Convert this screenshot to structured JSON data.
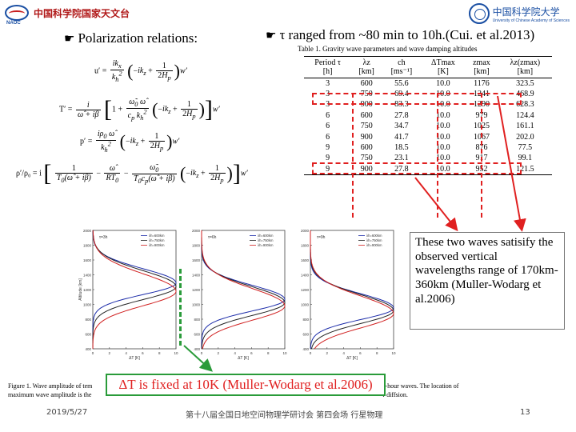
{
  "header": {
    "left_logo_text": "中国科学院国家天文台",
    "left_logo_abbr": "NAOC",
    "right_logo_text": "中国科学院大学",
    "right_logo_subtext": "University of Chinese Academy of Sciences"
  },
  "heading_left": "Polarization relations:",
  "heading_right": "τ ranged from ~80 min to 10h.(Cui. et al.2013)",
  "table": {
    "title": "Table 1.  Gravity wave parameters and wave damping altitudes",
    "columns": [
      "Period τ",
      "λz",
      "ch",
      "ΔTmax",
      "zmax",
      "λz(zmax)"
    ],
    "units": [
      "[h]",
      "[km]",
      "[ms⁻¹]",
      "[K]",
      "[km]",
      "[km]"
    ],
    "rows": [
      [
        "3",
        "600",
        "55.6",
        "10.0",
        "1176",
        "323.5"
      ],
      [
        "3",
        "750",
        "69.4",
        "10.0",
        "1241",
        "468.9"
      ],
      [
        "3",
        "900",
        "83.3",
        "10.0",
        "1290",
        "628.3"
      ],
      [
        "6",
        "600",
        "27.8",
        "10.0",
        "979",
        "124.4"
      ],
      [
        "6",
        "750",
        "34.7",
        "10.0",
        "1025",
        "161.1"
      ],
      [
        "6",
        "900",
        "41.7",
        "10.0",
        "1067",
        "202.0"
      ],
      [
        "9",
        "600",
        "18.5",
        "10.0",
        "876",
        "77.5"
      ],
      [
        "9",
        "750",
        "23.1",
        "10.0",
        "917",
        "99.1"
      ],
      [
        "9",
        "900",
        "27.8",
        "10.0",
        "952",
        "121.5"
      ]
    ]
  },
  "note": "These two waves satisify the observed vertical wavelengths range of 170km-360km (Muller-Wodarg et al.2006)",
  "plots": [
    {
      "title": "τ=3h",
      "xlabel": "ΔT [K]",
      "ylabel": "Altitude [km]",
      "legend": [
        "λh=600km",
        "λh=750km",
        "λh=900km"
      ],
      "yticks": [
        "400",
        "600",
        "800",
        "1000",
        "1200",
        "1400",
        "1600",
        "1800",
        "2000"
      ],
      "xticks": [
        "0",
        "2",
        "4",
        "6",
        "8",
        "10"
      ]
    },
    {
      "title": "τ=6h",
      "xlabel": "ΔT [K]",
      "ylabel": "",
      "legend": [
        "λh=600km",
        "λh=750km",
        "λh=900km"
      ],
      "yticks": [
        "400",
        "600",
        "800",
        "1000",
        "1200",
        "1400",
        "1600",
        "1800",
        "2000"
      ],
      "xticks": [
        "0",
        "2",
        "4",
        "6",
        "8",
        "10"
      ]
    },
    {
      "title": "τ=9h",
      "xlabel": "ΔT [K]",
      "ylabel": "",
      "legend": [
        "λh=600km",
        "λh=750km",
        "λh=900km"
      ],
      "yticks": [
        "400",
        "600",
        "800",
        "1000",
        "1200",
        "1400",
        "1600",
        "1800",
        "2000"
      ],
      "xticks": [
        "0",
        "2",
        "4",
        "6",
        "8",
        "10"
      ]
    }
  ],
  "series_colors": [
    "#1a2aa8",
    "#222222",
    "#d02020"
  ],
  "caption": {
    "line1_start": "Figure 1. Wave amplitude of tem",
    "line1_end": "-hour waves. The location of",
    "line2_start": "maximum wave amplitude is the",
    "line2_end": "r diffsion."
  },
  "dt_box": "ΔT  is fixed at 10K (Muller-Wodarg et al.2006)",
  "footer": {
    "date": "2019/5/27",
    "conference": "第十八届全国日地空间物理学研讨会 第四会场 行星物理",
    "page": "13"
  },
  "equations": {
    "u": "u′ = ",
    "T": "T′ = ",
    "p": "p′ = ",
    "rho": "ρ′/ρ₀ = i"
  }
}
